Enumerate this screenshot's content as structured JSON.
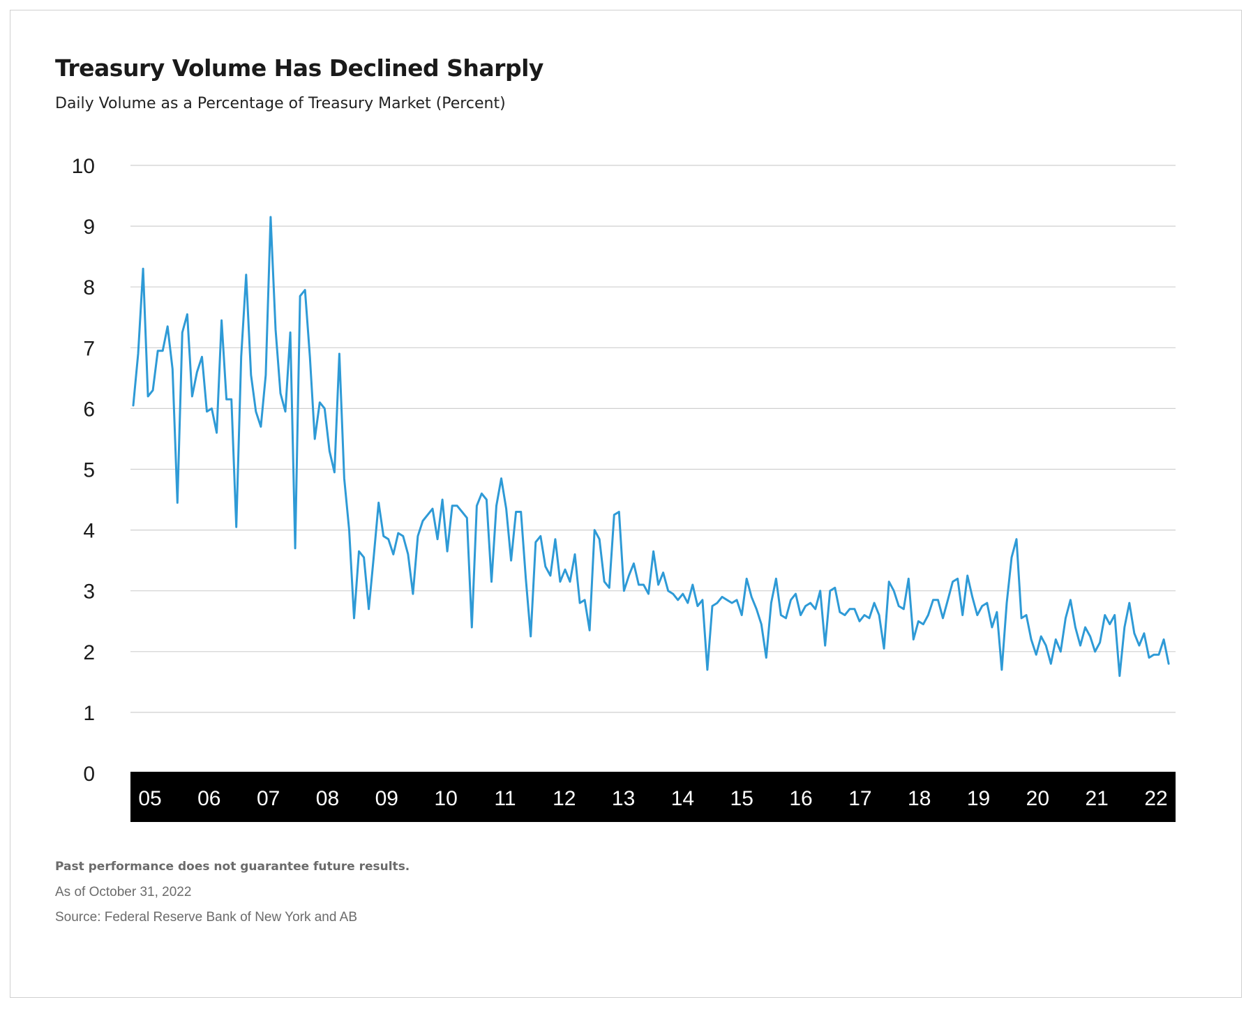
{
  "chart_data": {
    "type": "line",
    "title": "Treasury Volume Has Declined Sharply",
    "subtitle": "Daily Volume as a Percentage of Treasury Market (Percent)",
    "xlabel": "",
    "ylabel": "",
    "ylim": [
      0,
      10
    ],
    "yticks": [
      "0",
      "1",
      "2",
      "3",
      "4",
      "5",
      "6",
      "7",
      "8",
      "9",
      "10"
    ],
    "xticks": [
      "05",
      "06",
      "07",
      "08",
      "09",
      "10",
      "11",
      "12",
      "13",
      "14",
      "15",
      "16",
      "17",
      "18",
      "19",
      "20",
      "21",
      "22"
    ],
    "xlim": [
      0,
      17.67
    ],
    "grid": true,
    "series": [
      {
        "name": "Daily Volume as a Percentage of Treasury Market",
        "color": "#2e9ad6",
        "x_start": 0,
        "x_step": 0.0833,
        "values": [
          6.05,
          6.9,
          8.3,
          6.2,
          6.3,
          6.95,
          6.95,
          7.35,
          6.65,
          4.45,
          7.25,
          7.55,
          6.2,
          6.6,
          6.85,
          5.95,
          6.0,
          5.6,
          7.45,
          6.15,
          6.15,
          4.05,
          6.85,
          8.2,
          6.55,
          5.95,
          5.7,
          6.55,
          9.15,
          7.3,
          6.25,
          5.95,
          7.25,
          3.7,
          7.85,
          7.95,
          6.85,
          5.5,
          6.1,
          6.0,
          5.3,
          4.95,
          6.9,
          4.85,
          4.0,
          2.55,
          3.65,
          3.55,
          2.7,
          3.55,
          4.45,
          3.9,
          3.85,
          3.6,
          3.95,
          3.9,
          3.6,
          2.95,
          3.9,
          4.15,
          4.25,
          4.35,
          3.85,
          4.5,
          3.65,
          4.4,
          4.4,
          4.3,
          4.2,
          2.4,
          4.4,
          4.6,
          4.5,
          3.15,
          4.4,
          4.85,
          4.35,
          3.5,
          4.3,
          4.3,
          3.2,
          2.25,
          3.8,
          3.9,
          3.4,
          3.25,
          3.85,
          3.15,
          3.35,
          3.15,
          3.6,
          2.8,
          2.85,
          2.35,
          4.0,
          3.85,
          3.15,
          3.05,
          4.25,
          4.3,
          3.0,
          3.25,
          3.45,
          3.1,
          3.1,
          2.95,
          3.65,
          3.1,
          3.3,
          3.0,
          2.95,
          2.85,
          2.95,
          2.8,
          3.1,
          2.75,
          2.85,
          1.7,
          2.75,
          2.8,
          2.9,
          2.85,
          2.8,
          2.85,
          2.6,
          3.2,
          2.9,
          2.7,
          2.45,
          1.9,
          2.8,
          3.2,
          2.6,
          2.55,
          2.85,
          2.95,
          2.6,
          2.75,
          2.8,
          2.7,
          3.0,
          2.1,
          3.0,
          3.05,
          2.65,
          2.6,
          2.7,
          2.7,
          2.5,
          2.6,
          2.55,
          2.8,
          2.6,
          2.05,
          3.15,
          3.0,
          2.75,
          2.7,
          3.2,
          2.2,
          2.5,
          2.45,
          2.6,
          2.85,
          2.85,
          2.55,
          2.85,
          3.15,
          3.2,
          2.6,
          3.25,
          2.9,
          2.6,
          2.75,
          2.8,
          2.4,
          2.65,
          1.7,
          2.8,
          3.55,
          3.85,
          2.55,
          2.6,
          2.2,
          1.95,
          2.25,
          2.1,
          1.8,
          2.2,
          2.0,
          2.55,
          2.85,
          2.4,
          2.1,
          2.4,
          2.25,
          2.0,
          2.15,
          2.6,
          2.45,
          2.6,
          1.6,
          2.4,
          2.8,
          2.3,
          2.1,
          2.3,
          1.9,
          1.95,
          1.95,
          2.2,
          1.8
        ]
      }
    ]
  },
  "footer": {
    "disclaimer": "Past performance does not guarantee future results.",
    "as_of": "As of  October 31, 2022",
    "source": "Source: Federal Reserve Bank of New York and AB"
  }
}
